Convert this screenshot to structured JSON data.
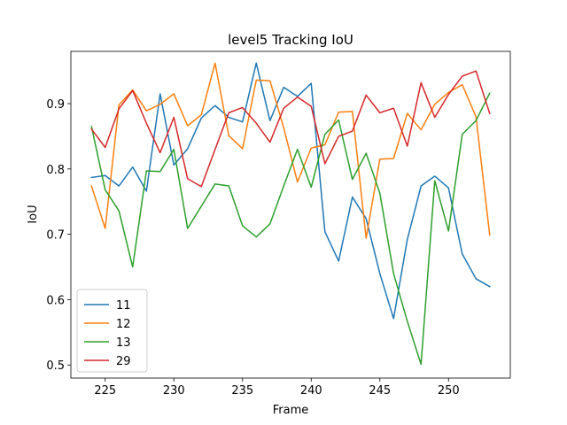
{
  "chart_data": {
    "type": "line",
    "title": "level5 Tracking IoU",
    "xlabel": "Frame",
    "ylabel": "IoU",
    "xlim": [
      222.5,
      254.5
    ],
    "ylim": [
      0.48,
      0.98
    ],
    "xticks": [
      225,
      230,
      235,
      240,
      245,
      250
    ],
    "yticks": [
      0.5,
      0.6,
      0.7,
      0.8,
      0.9
    ],
    "ytick_labels": [
      "0.5",
      "0.6",
      "0.7",
      "0.8",
      "0.9"
    ],
    "grid": false,
    "legend_position": "lower-left",
    "x": [
      224,
      225,
      226,
      227,
      228,
      229,
      230,
      231,
      232,
      233,
      234,
      235,
      236,
      237,
      238,
      239,
      240,
      241,
      242,
      243,
      244,
      245,
      246,
      247,
      248,
      249,
      250,
      251,
      252,
      253
    ],
    "series": [
      {
        "name": "11",
        "color": "#1f77b4",
        "values": [
          0.787,
          0.79,
          0.774,
          0.803,
          0.766,
          0.915,
          0.806,
          0.831,
          0.878,
          0.897,
          0.879,
          0.872,
          0.962,
          0.874,
          0.925,
          0.911,
          0.931,
          0.704,
          0.659,
          0.757,
          0.724,
          0.64,
          0.571,
          0.692,
          0.774,
          0.789,
          0.771,
          0.67,
          0.632,
          0.62
        ]
      },
      {
        "name": "12",
        "color": "#ff7f0e",
        "values": [
          0.774,
          0.709,
          0.898,
          0.921,
          0.889,
          0.899,
          0.915,
          0.866,
          0.883,
          0.962,
          0.851,
          0.831,
          0.936,
          0.935,
          0.863,
          0.78,
          0.832,
          0.837,
          0.887,
          0.888,
          0.694,
          0.815,
          0.816,
          0.885,
          0.86,
          0.899,
          0.917,
          0.929,
          0.88,
          0.699
        ]
      },
      {
        "name": "13",
        "color": "#2ca02c",
        "values": [
          0.865,
          0.768,
          0.736,
          0.65,
          0.797,
          0.796,
          0.83,
          0.709,
          0.743,
          0.777,
          0.774,
          0.713,
          0.696,
          0.716,
          0.774,
          0.83,
          0.772,
          0.853,
          0.875,
          0.784,
          0.824,
          0.763,
          0.64,
          0.567,
          0.501,
          0.782,
          0.705,
          0.853,
          0.874,
          0.916
        ]
      },
      {
        "name": "29",
        "color": "#d62728",
        "values": [
          0.861,
          0.833,
          0.892,
          0.92,
          0.87,
          0.825,
          0.879,
          0.785,
          0.773,
          0.83,
          0.886,
          0.894,
          0.87,
          0.841,
          0.893,
          0.91,
          0.896,
          0.808,
          0.85,
          0.858,
          0.913,
          0.886,
          0.893,
          0.835,
          0.932,
          0.879,
          0.914,
          0.942,
          0.95,
          0.885
        ]
      }
    ]
  }
}
